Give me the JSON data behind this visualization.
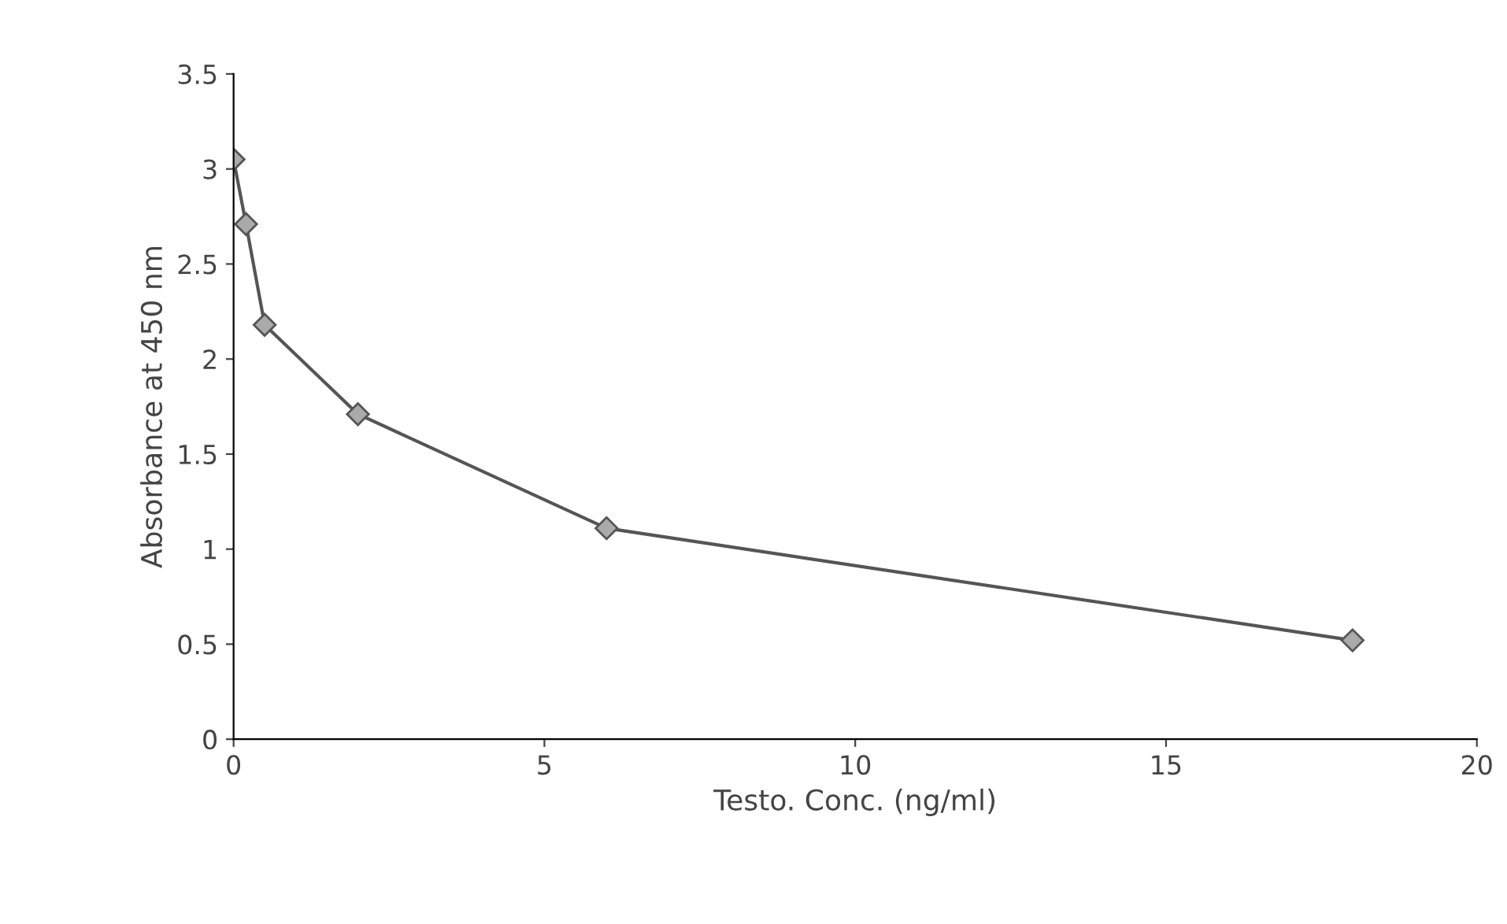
{
  "chart_data": {
    "type": "line",
    "xlabel": "Testo. Conc. (ng/ml)",
    "ylabel": "Absorbance at 450 nm",
    "x": [
      0,
      0.2,
      0.5,
      2,
      6,
      18
    ],
    "series": [
      {
        "color": "#555555",
        "values": [
          3.05,
          2.71,
          2.18,
          1.71,
          1.11,
          0.52
        ]
      }
    ],
    "marker": "diamond",
    "xlim": [
      0,
      20
    ],
    "xticks": [
      0,
      5,
      10,
      15,
      20
    ],
    "ylim": [
      0,
      3.5
    ],
    "yticks": [
      0,
      0.5,
      1,
      1.5,
      2,
      2.5,
      3,
      3.5
    ],
    "grid": false
  }
}
